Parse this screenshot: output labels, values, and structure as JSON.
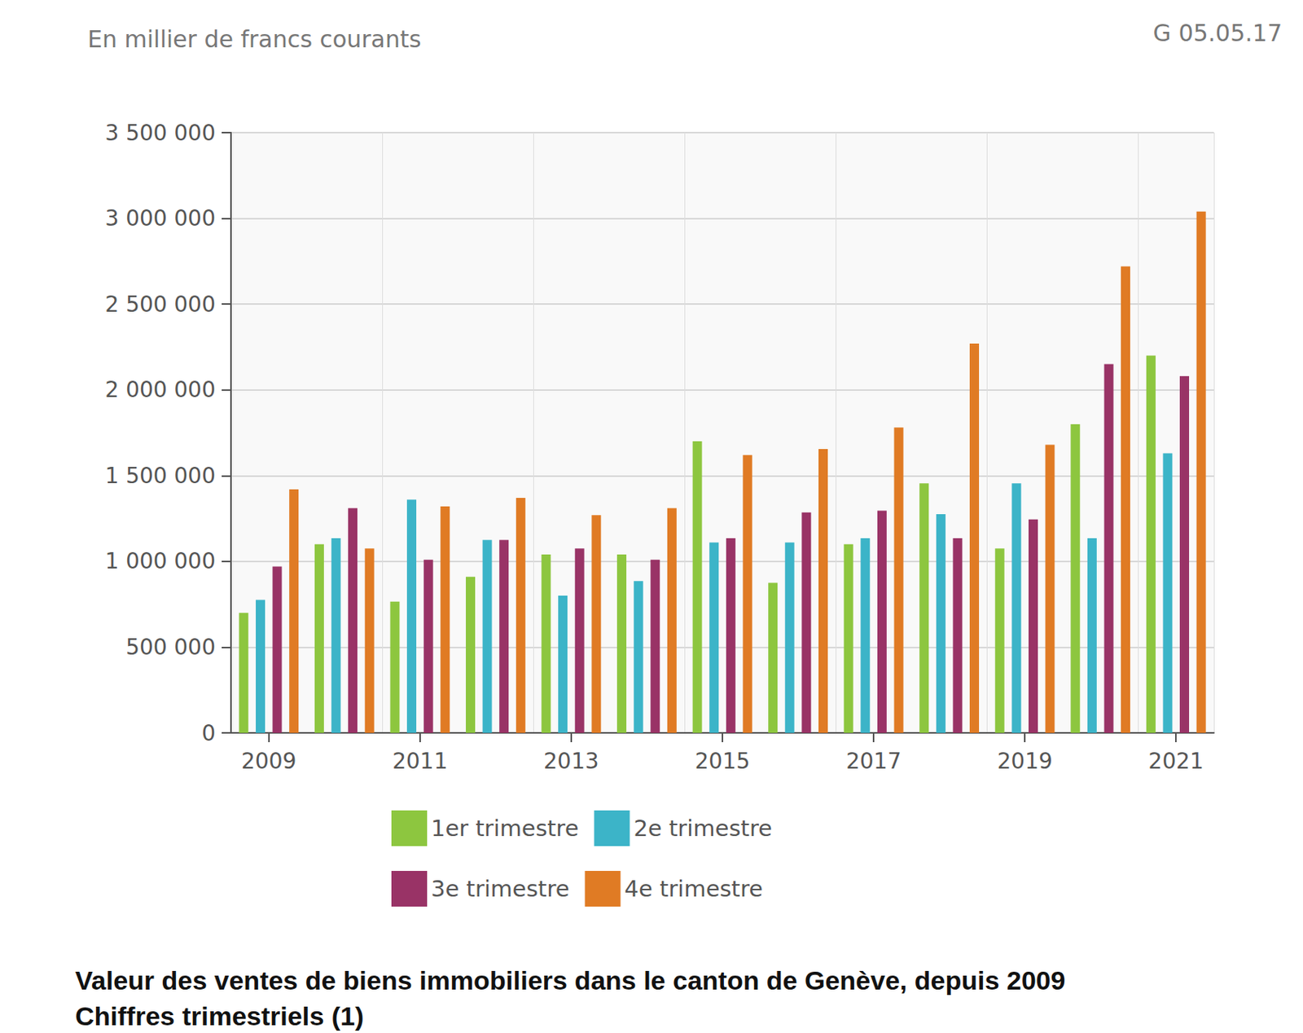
{
  "chart_data": {
    "type": "bar",
    "title": "Valeur des ventes de biens immobiliers dans le canton de Genève, depuis 2009",
    "subtitle": "Chiffres trimestriels (1)",
    "ylabel": "En millier de francs courants",
    "annotations": [
      "G 05.05.17"
    ],
    "categories": [
      "2009",
      null,
      "2011",
      null,
      "2013",
      null,
      "2015",
      null,
      "2017",
      null,
      "2019",
      null,
      "2021"
    ],
    "series": [
      {
        "name": "1er trimestre",
        "color": "#8dc63f",
        "values": [
          700000,
          1100000,
          765000,
          910000,
          1040000,
          1040000,
          1700000,
          875000,
          1100000,
          1455000,
          1075000,
          1800000,
          2200000
        ]
      },
      {
        "name": "2e trimestre",
        "color": "#3cb4c8",
        "values": [
          775000,
          1135000,
          1360000,
          1125000,
          800000,
          885000,
          1110000,
          1110000,
          1135000,
          1275000,
          1455000,
          1135000,
          1630000
        ]
      },
      {
        "name": "3e trimestre",
        "color": "#993366",
        "values": [
          970000,
          1310000,
          1010000,
          1125000,
          1075000,
          1010000,
          1135000,
          1285000,
          1295000,
          1135000,
          1245000,
          2150000,
          2080000
        ]
      },
      {
        "name": "4e trimestre",
        "color": "#e07b24",
        "values": [
          1420000,
          1075000,
          1320000,
          1370000,
          1270000,
          1310000,
          1620000,
          1655000,
          1780000,
          2270000,
          1680000,
          2720000,
          3040000
        ]
      }
    ],
    "ylim": [
      0,
      3500000
    ],
    "yticks": [
      0,
      {
        "value": 500000,
        "label": "500 000"
      },
      {
        "value": 1000000,
        "label": "1 000 000"
      },
      {
        "value": 1500000,
        "label": "1 500 000"
      },
      {
        "value": 2000000,
        "label": "2 000 000"
      },
      {
        "value": 2500000,
        "label": "2 500 000"
      },
      {
        "value": 3000000,
        "label": "3 000 000"
      },
      {
        "value": 3500000,
        "label": "3 500 000"
      }
    ],
    "grid": true,
    "legend": "bottom"
  }
}
